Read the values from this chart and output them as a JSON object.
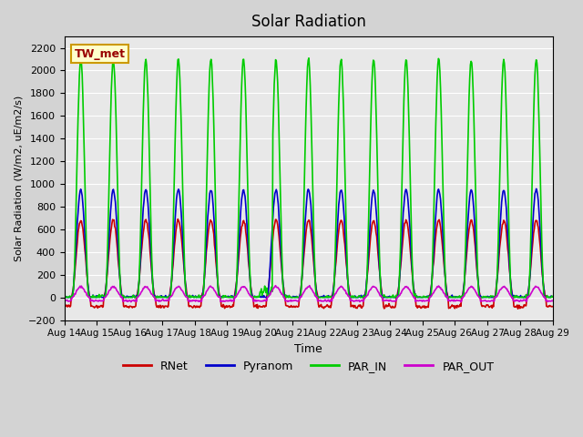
{
  "title": "Solar Radiation",
  "ylabel": "Solar Radiation (W/m2, uE/m2/s)",
  "xlabel": "Time",
  "ylim": [
    -200,
    2300
  ],
  "yticks": [
    -200,
    0,
    200,
    400,
    600,
    800,
    1000,
    1200,
    1400,
    1600,
    1800,
    2000,
    2200
  ],
  "xtick_labels": [
    "Aug 14",
    "Aug 15",
    "Aug 16",
    "Aug 17",
    "Aug 18",
    "Aug 19",
    "Aug 20",
    "Aug 21",
    "Aug 22",
    "Aug 23",
    "Aug 24",
    "Aug 25",
    "Aug 26",
    "Aug 27",
    "Aug 28",
    "Aug 29"
  ],
  "legend_labels": [
    "RNet",
    "Pyranom",
    "PAR_IN",
    "PAR_OUT"
  ],
  "legend_colors": [
    "#cc0000",
    "#0000cc",
    "#00cc00",
    "#cc00cc"
  ],
  "site_label": "TW_met",
  "site_label_color": "#990000",
  "site_box_facecolor": "#ffffcc",
  "site_box_edgecolor": "#cc9900",
  "rnet_peak": 680,
  "rnet_night": -80,
  "pyranom_peak": 950,
  "par_in_peak": 2100,
  "par_out_peak": 95,
  "par_out_night": -30,
  "line_width": 1.2
}
